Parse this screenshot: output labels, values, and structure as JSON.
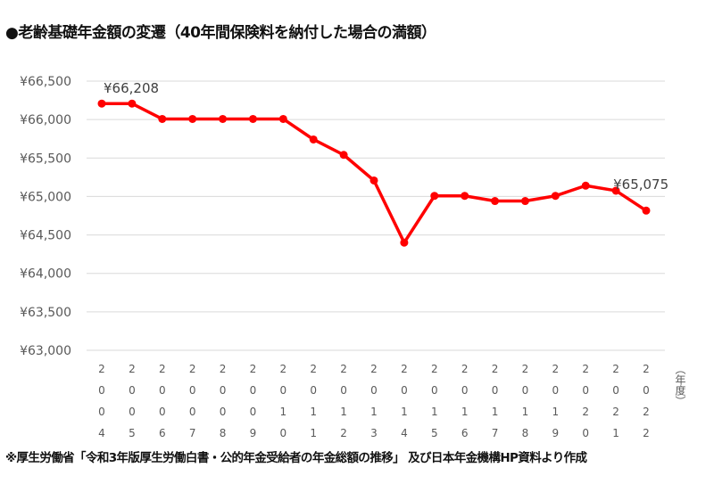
{
  "chart_data": {
    "type": "line",
    "title": "●老齢基礎年金額の変遷（40年間保険料を納付した場合の満額）",
    "xlabel": "（年度）",
    "ylabel": "",
    "categories": [
      "2004",
      "2005",
      "2006",
      "2007",
      "2008",
      "2009",
      "2010",
      "2011",
      "2012",
      "2013",
      "2014",
      "2015",
      "2016",
      "2017",
      "2018",
      "2019",
      "2020",
      "2021",
      "2022"
    ],
    "series": [
      {
        "name": "老齢基礎年金額",
        "color": "#ff0000",
        "values": [
          66208,
          66208,
          66008,
          66008,
          66008,
          66008,
          66008,
          65741,
          65541,
          65208,
          64400,
          65008,
          65008,
          64941,
          64941,
          65008,
          65141,
          65075,
          64816
        ]
      }
    ],
    "ylim": [
      63000,
      66500
    ],
    "yticks": [
      63000,
      63500,
      64000,
      64500,
      65000,
      65500,
      66000,
      66500
    ],
    "ytick_labels": [
      "¥63,000",
      "¥63,500",
      "¥64,000",
      "¥64,500",
      "¥65,000",
      "¥65,500",
      "¥66,000",
      "¥66,500"
    ],
    "grid": true,
    "annotations": [
      {
        "index": 0,
        "text": "¥66,208"
      },
      {
        "index": 17,
        "text": "¥65,075"
      }
    ],
    "source_note": "※厚生労働省「令和3年版厚生労働白書・公的年金受給者の年金総額の推移」 及び日本年金機構HP資料より作成"
  }
}
